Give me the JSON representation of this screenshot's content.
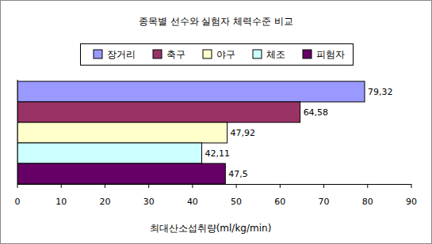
{
  "chart_data": {
    "type": "bar",
    "orientation": "horizontal",
    "title": "종목별 선수와 실험자 체력수준 비교",
    "xlabel": "최대산소섭취량(ml/kg/min)",
    "categories": [
      null
    ],
    "series": [
      {
        "name": "장거리",
        "color": "#9999ff",
        "values": [
          79.32
        ],
        "value_labels": [
          "79,32"
        ]
      },
      {
        "name": "축구",
        "color": "#993366",
        "values": [
          64.58
        ],
        "value_labels": [
          "64,58"
        ]
      },
      {
        "name": "야구",
        "color": "#ffffcc",
        "values": [
          47.92
        ],
        "value_labels": [
          "47,92"
        ]
      },
      {
        "name": "체조",
        "color": "#ccffff",
        "values": [
          42.11
        ],
        "value_labels": [
          "42,11"
        ]
      },
      {
        "name": "피험자",
        "color": "#660066",
        "values": [
          47.5
        ],
        "value_labels": [
          "47,5"
        ]
      }
    ],
    "xlim": [
      0,
      90
    ],
    "xticks": [
      0,
      10,
      20,
      30,
      40,
      50,
      60,
      70,
      80,
      90
    ],
    "data_labels": true,
    "legend": "top",
    "tick_labels": "x",
    "grid": false
  }
}
